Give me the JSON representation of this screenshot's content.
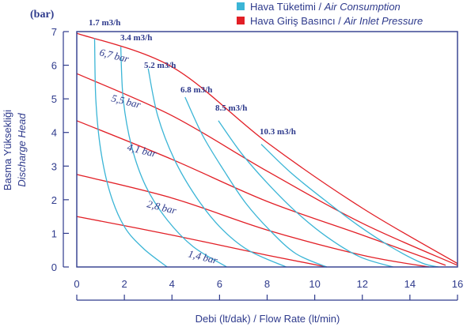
{
  "chart_data": {
    "type": "line",
    "y_unit": "(bar)",
    "ylabel_line1": "Basma Yüksekliği",
    "ylabel_line2": "Discharge Head",
    "xlabel": "Debi (lt/dak) / Flow Rate (lt/min)",
    "xlim": [
      0,
      16
    ],
    "ylim": [
      0,
      7
    ],
    "x_ticks": [
      0,
      2,
      4,
      6,
      8,
      10,
      12,
      14,
      16
    ],
    "y_ticks": [
      0,
      1,
      2,
      3,
      4,
      5,
      6,
      7
    ],
    "legend": [
      {
        "label_tr": "Hava Tüketimi",
        "label_en": "Air Consumption",
        "color": "#3bb5d6"
      },
      {
        "label_tr": "Hava Giriş Basıncı",
        "label_en": "Air Inlet Pressure",
        "color": "#e21f26"
      }
    ],
    "inlet_pressure_series": [
      {
        "label": "6,7 bar",
        "points": [
          [
            0,
            6.95
          ],
          [
            4,
            5.95
          ],
          [
            8,
            3.7
          ],
          [
            12,
            1.75
          ],
          [
            16,
            0.1
          ]
        ]
      },
      {
        "label": "5,5 bar",
        "points": [
          [
            0,
            5.75
          ],
          [
            4,
            4.5
          ],
          [
            8,
            2.85
          ],
          [
            12,
            1.3
          ],
          [
            16,
            0.05
          ]
        ]
      },
      {
        "label": "4,1 bar",
        "points": [
          [
            0,
            4.35
          ],
          [
            4,
            3.2
          ],
          [
            8,
            1.95
          ],
          [
            12,
            0.95
          ],
          [
            15.5,
            0.05
          ]
        ]
      },
      {
        "label": "2,8 bar",
        "points": [
          [
            0,
            2.75
          ],
          [
            4,
            2.05
          ],
          [
            8,
            1.1
          ],
          [
            12,
            0.35
          ],
          [
            14.8,
            0
          ]
        ]
      },
      {
        "label": "1,4 bar",
        "points": [
          [
            0,
            1.5
          ],
          [
            4,
            0.95
          ],
          [
            8,
            0.35
          ],
          [
            10.5,
            0
          ]
        ]
      }
    ],
    "air_consumption_series": [
      {
        "label": "1.7 m3/h",
        "points": [
          [
            0.75,
            6.8
          ],
          [
            0.8,
            5.0
          ],
          [
            1.0,
            3.5
          ],
          [
            1.4,
            2.2
          ],
          [
            2.0,
            1.2
          ],
          [
            2.8,
            0.55
          ],
          [
            3.8,
            0
          ]
        ]
      },
      {
        "label": "3.4 m3/h",
        "points": [
          [
            1.85,
            6.55
          ],
          [
            1.95,
            5.0
          ],
          [
            2.3,
            3.6
          ],
          [
            2.9,
            2.4
          ],
          [
            3.8,
            1.4
          ],
          [
            4.9,
            0.6
          ],
          [
            6.3,
            0
          ]
        ]
      },
      {
        "label": "5.2 m3/h",
        "points": [
          [
            3.0,
            5.9
          ],
          [
            3.4,
            4.5
          ],
          [
            4.1,
            3.2
          ],
          [
            5.0,
            2.1
          ],
          [
            6.0,
            1.2
          ],
          [
            7.2,
            0.5
          ],
          [
            8.8,
            0
          ]
        ]
      },
      {
        "label": "6.8 m3/h",
        "points": [
          [
            4.55,
            5.05
          ],
          [
            5.3,
            3.9
          ],
          [
            6.2,
            2.85
          ],
          [
            7.1,
            1.9
          ],
          [
            8.1,
            1.1
          ],
          [
            9.2,
            0.4
          ],
          [
            10.5,
            0
          ]
        ]
      },
      {
        "label": "8.5 m3/h",
        "points": [
          [
            5.95,
            4.35
          ],
          [
            6.9,
            3.4
          ],
          [
            8.0,
            2.5
          ],
          [
            9.2,
            1.65
          ],
          [
            10.5,
            0.9
          ],
          [
            11.9,
            0.3
          ],
          [
            13.3,
            0
          ]
        ]
      },
      {
        "label": "10.3 m3/h",
        "points": [
          [
            7.75,
            3.65
          ],
          [
            9.0,
            2.8
          ],
          [
            10.4,
            2.0
          ],
          [
            11.8,
            1.25
          ],
          [
            13.2,
            0.6
          ],
          [
            14.5,
            0.12
          ],
          [
            15.2,
            0
          ]
        ]
      }
    ]
  }
}
